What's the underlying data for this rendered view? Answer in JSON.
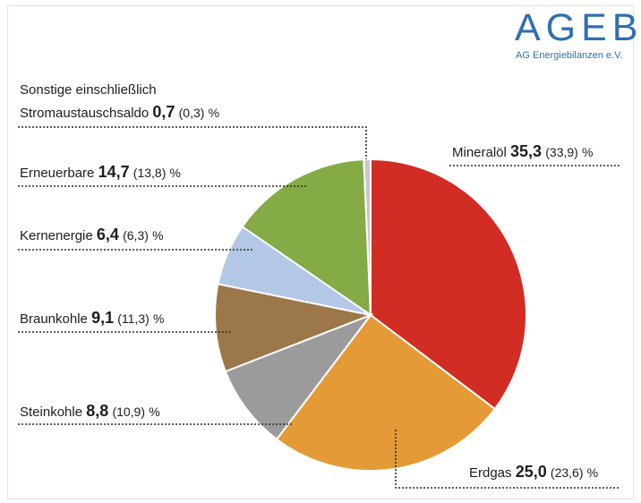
{
  "logo": {
    "main": "AGEB",
    "sub": "AG Energiebilanzen e.V."
  },
  "colors": {
    "accent": "#2f6fb0",
    "Mineralöl": "#d12d25",
    "Erdgas": "#e49a36",
    "Steinkohle": "#9b9b9b",
    "Braunkohle": "#9c7749",
    "Kernenergie": "#b3c8e6",
    "Erneuerbare": "#84ab45",
    "Sonstige": "#c9c9c9"
  },
  "chart_data": {
    "type": "pie",
    "title": "",
    "unit": "%",
    "slices": [
      {
        "key": "mineraloel",
        "label": "Mineralöl",
        "value": 35.3,
        "value_text": "35,3",
        "prev": 33.9,
        "prev_text": "(33,9)",
        "color": "#d12d25"
      },
      {
        "key": "erdgas",
        "label": "Erdgas",
        "value": 25.0,
        "value_text": "25,0",
        "prev": 23.6,
        "prev_text": "(23,6)",
        "color": "#e49a36"
      },
      {
        "key": "steinkohle",
        "label": "Steinkohle",
        "value": 8.8,
        "value_text": "8,8",
        "prev": 10.9,
        "prev_text": "(10,9)",
        "color": "#9b9b9b"
      },
      {
        "key": "braunkohle",
        "label": "Braunkohle",
        "value": 9.1,
        "value_text": "9,1",
        "prev": 11.3,
        "prev_text": "(11,3)",
        "color": "#9c7749"
      },
      {
        "key": "kernenergie",
        "label": "Kernenergie",
        "value": 6.4,
        "value_text": "6,4",
        "prev": 6.3,
        "prev_text": "(6,3)",
        "color": "#b3c8e6"
      },
      {
        "key": "erneuerbare",
        "label": "Erneuerbare",
        "value": 14.7,
        "value_text": "14,7",
        "prev": 13.8,
        "prev_text": "(13,8)",
        "color": "#84ab45"
      },
      {
        "key": "sonstige",
        "label_line1": "Sonstige einschließlich",
        "label": "Stromaustauschsaldo",
        "value": 0.7,
        "value_text": "0,7",
        "prev": 0.3,
        "prev_text": "(0,3)",
        "color": "#c9c9c9"
      }
    ]
  }
}
